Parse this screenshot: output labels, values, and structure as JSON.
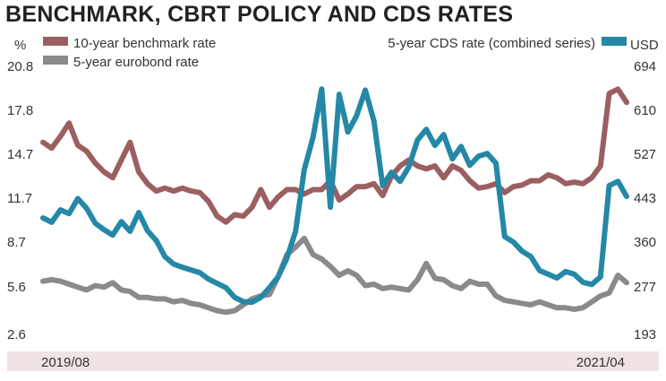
{
  "chart_data": {
    "type": "line",
    "title": "BENCHMARK, CBRT POLICY AND CDS RATES",
    "left_axis": {
      "unit": "%",
      "ticks": [
        "20.8",
        "17.8",
        "14.7",
        "11.7",
        "8.7",
        "5.6",
        "2.6"
      ],
      "ylim": [
        2.6,
        20.8
      ]
    },
    "right_axis": {
      "unit": "USD",
      "ticks": [
        "694",
        "610",
        "527",
        "443",
        "360",
        "277",
        "193"
      ],
      "ylim": [
        193,
        694
      ]
    },
    "x_labels": [
      "2019/08",
      "2021/04"
    ],
    "grid": false,
    "legend_placement": "top",
    "series": [
      {
        "name": "10-year benchmark rate",
        "axis": "left",
        "color": "#9c5f61",
        "values": [
          15.6,
          15.2,
          16.0,
          16.9,
          15.4,
          15.0,
          14.2,
          13.6,
          13.2,
          14.4,
          15.6,
          13.6,
          12.8,
          12.3,
          12.5,
          12.3,
          12.5,
          12.3,
          12.2,
          11.6,
          10.6,
          10.2,
          10.7,
          10.6,
          11.2,
          12.4,
          11.2,
          11.9,
          12.4,
          12.4,
          12.1,
          12.4,
          12.4,
          13.0,
          11.7,
          12.1,
          12.6,
          12.6,
          12.8,
          12.0,
          13.3,
          14.0,
          14.4,
          14.0,
          13.8,
          14.0,
          13.2,
          14.0,
          13.7,
          13.0,
          12.5,
          12.6,
          12.8,
          12.2,
          12.6,
          12.7,
          13.0,
          13.0,
          13.4,
          13.2,
          12.8,
          12.9,
          12.8,
          13.2,
          14.0,
          18.9,
          19.2,
          18.3
        ]
      },
      {
        "name": "5-year eurobond rate",
        "axis": "left",
        "color": "#8a8a8a",
        "values": [
          6.2,
          6.3,
          6.2,
          6.0,
          5.8,
          5.6,
          5.9,
          5.8,
          6.1,
          5.6,
          5.5,
          5.1,
          5.1,
          5.0,
          5.0,
          4.8,
          4.9,
          4.7,
          4.6,
          4.4,
          4.2,
          4.1,
          4.2,
          4.6,
          5.0,
          5.2,
          5.3,
          6.5,
          8.0,
          8.5,
          9.1,
          8.0,
          7.7,
          7.2,
          6.6,
          6.9,
          6.6,
          5.9,
          6.0,
          5.7,
          5.8,
          5.7,
          5.6,
          6.3,
          7.4,
          6.4,
          6.3,
          5.9,
          5.7,
          6.2,
          6.0,
          6.0,
          5.2,
          4.9,
          4.8,
          4.7,
          4.6,
          4.8,
          4.6,
          4.4,
          4.4,
          4.3,
          4.4,
          4.8,
          5.2,
          5.4,
          6.6,
          6.1
        ]
      },
      {
        "name": "5-year CDS rate (combined series)",
        "axis": "right",
        "color": "#2488a6",
        "values": [
          410,
          402,
          425,
          418,
          446,
          428,
          400,
          388,
          378,
          403,
          385,
          420,
          386,
          368,
          338,
          324,
          318,
          313,
          308,
          296,
          288,
          280,
          262,
          254,
          253,
          262,
          280,
          300,
          335,
          385,
          500,
          560,
          650,
          430,
          640,
          570,
          600,
          648,
          590,
          470,
          495,
          478,
          505,
          555,
          575,
          545,
          565,
          520,
          543,
          508,
          525,
          530,
          512,
          375,
          365,
          348,
          338,
          312,
          305,
          298,
          310,
          305,
          290,
          286,
          300,
          470,
          478,
          450
        ]
      }
    ]
  }
}
